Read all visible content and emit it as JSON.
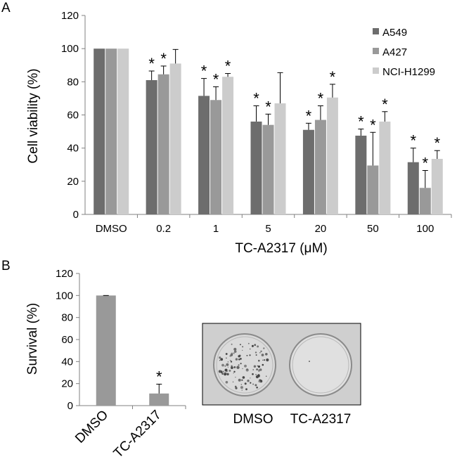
{
  "panel_labels": [
    "A",
    "B"
  ],
  "significance_marker": "*",
  "colors": {
    "A549": "#6d6d6d",
    "A427": "#999999",
    "NCI-H1299": "#cccccc",
    "survival_bar": "#999999",
    "axis": "#808080",
    "photo_bg": "#cfcfcf"
  },
  "photo": {
    "dish_labels": [
      "DMSO",
      "TC-A2317"
    ]
  },
  "chart_data": [
    {
      "type": "bar",
      "title": "",
      "xlabel": "TC-A2317 (μM)",
      "ylabel": "Cell viability (%)",
      "ylim": [
        0,
        120
      ],
      "yticks": [
        0,
        20,
        40,
        60,
        80,
        100,
        120
      ],
      "categories": [
        "DMSO",
        "0.2",
        "1",
        "5",
        "20",
        "50",
        "100"
      ],
      "legend_position": "top-right",
      "series": [
        {
          "name": "A549",
          "values": [
            100,
            81,
            71.5,
            56,
            51,
            47.5,
            31.5
          ],
          "errors": [
            0,
            5.5,
            10.5,
            9.5,
            4,
            4,
            8.5
          ],
          "significant": [
            false,
            true,
            true,
            true,
            true,
            true,
            true
          ]
        },
        {
          "name": "A427",
          "values": [
            100,
            84.5,
            69,
            54,
            57,
            29.5,
            16
          ],
          "errors": [
            0,
            5,
            8,
            6.5,
            8.5,
            20,
            10.5
          ],
          "significant": [
            false,
            true,
            true,
            true,
            true,
            true,
            true
          ]
        },
        {
          "name": "NCI-H1299",
          "values": [
            100,
            91,
            83,
            67,
            70.5,
            56,
            33.5
          ],
          "errors": [
            0,
            8.5,
            2,
            18.5,
            8,
            6,
            5
          ],
          "significant": [
            false,
            false,
            true,
            false,
            true,
            true,
            true
          ]
        }
      ]
    },
    {
      "type": "bar",
      "title": "",
      "xlabel": "",
      "ylabel": "Survival (%)",
      "ylim": [
        0,
        120
      ],
      "yticks": [
        0,
        20,
        40,
        60,
        80,
        100,
        120
      ],
      "categories": [
        "DMSO",
        "TC-A2317"
      ],
      "series": [
        {
          "name": "Survival",
          "values": [
            100,
            11
          ],
          "errors": [
            0,
            8.5
          ],
          "significant": [
            false,
            true
          ]
        }
      ]
    }
  ]
}
